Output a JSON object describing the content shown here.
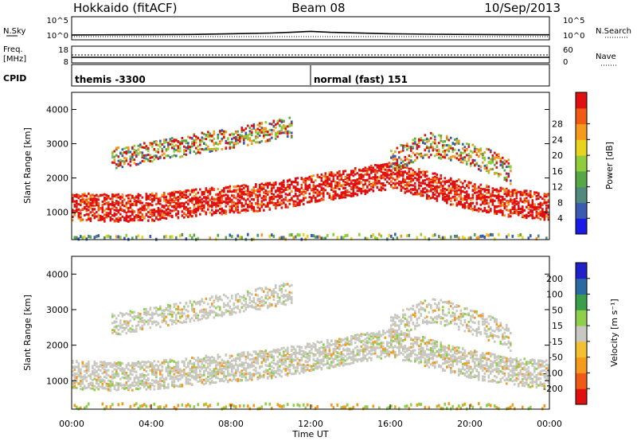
{
  "header": {
    "station": "Hokkaido (fitACF)",
    "beam": "Beam 08",
    "date": "10/Sep/2013"
  },
  "chart_data": [
    {
      "type": "line",
      "name": "noise-panel",
      "left_label": "N.Sky",
      "right_label": "N.Search",
      "left_ticks": [
        "10^5",
        "10^0"
      ],
      "right_ticks": [
        "10^5",
        "10^0"
      ],
      "series": [
        {
          "name": "N.Sky",
          "x": [
            0,
            2,
            4,
            6,
            8,
            10,
            11,
            12,
            13,
            14,
            16,
            18,
            20,
            22,
            24
          ],
          "y": [
            0.35,
            0.38,
            0.4,
            0.45,
            0.6,
            0.75,
            0.9,
            1.1,
            0.9,
            0.8,
            0.6,
            0.5,
            0.45,
            0.4,
            0.38
          ]
        },
        {
          "name": "N.Search",
          "x": [
            0,
            24
          ],
          "y": [
            0.05,
            0.05
          ]
        }
      ]
    },
    {
      "type": "line",
      "name": "frequency-panel",
      "left_label": "Freq.",
      "left_unit": "[MHz]",
      "right_label": "Nave",
      "left_ticks": [
        "18",
        "8"
      ],
      "right_ticks": [
        "60",
        "0"
      ],
      "series": [
        {
          "name": "Freq.",
          "x": [
            0,
            24
          ],
          "y": [
            10.9,
            10.9
          ]
        },
        {
          "name": "Nave",
          "x": [
            0,
            24
          ],
          "y": [
            29,
            29
          ]
        }
      ]
    },
    {
      "type": "table",
      "name": "cpid-panel",
      "label": "CPID",
      "segments": [
        {
          "label": "themis -3300",
          "start": 0.0
        },
        {
          "label": "normal (fast) 151",
          "start": 12.0
        }
      ]
    },
    {
      "type": "heatmap",
      "name": "power-panel",
      "ylabel": "Slant Range [km]",
      "yticks": [
        1000,
        2000,
        3000,
        4000
      ],
      "ylim": [
        200,
        4500
      ],
      "xlim": [
        0,
        24
      ],
      "colorbar": {
        "label": "Power [dB]",
        "ticks": [
          "4",
          "8",
          "12",
          "16",
          "20",
          "24",
          "28"
        ],
        "colors": [
          "#1a1ae6",
          "#3a5bb0",
          "#4f8a7c",
          "#55a845",
          "#8fce3a",
          "#e8d320",
          "#f59a1c",
          "#f05a14",
          "#e01010"
        ]
      },
      "bands": [
        {
          "x": [
            0,
            2,
            4,
            6,
            8,
            10,
            12,
            14,
            16,
            18,
            20,
            22,
            24
          ],
          "y": [
            1200,
            1150,
            1180,
            1300,
            1400,
            1500,
            1700,
            1900,
            2100,
            1800,
            1500,
            1300,
            1200
          ],
          "width": 400,
          "level": "high"
        },
        {
          "x": [
            2,
            4,
            6,
            8,
            10,
            11
          ],
          "y": [
            2600,
            2800,
            3000,
            3200,
            3400,
            3500
          ],
          "width": 300,
          "level": "mid"
        },
        {
          "x": [
            16,
            17,
            18,
            19,
            20,
            21,
            22
          ],
          "y": [
            2500,
            2800,
            3000,
            2900,
            2700,
            2500,
            2200
          ],
          "width": 350,
          "level": "mid"
        }
      ]
    },
    {
      "type": "heatmap",
      "name": "velocity-panel",
      "ylabel": "Slant Range [km]",
      "yticks": [
        1000,
        2000,
        3000,
        4000
      ],
      "ylim": [
        200,
        4500
      ],
      "xlim": [
        0,
        24
      ],
      "xlabel": "Time UT",
      "xticks": [
        "00:00",
        "04:00",
        "08:00",
        "12:00",
        "16:00",
        "20:00",
        "00:00"
      ],
      "colorbar": {
        "label": "Velocity [m s⁻¹]",
        "ticks": [
          "-200",
          "-100",
          "-50",
          "-15",
          "15",
          "50",
          "100",
          "200"
        ],
        "colors": [
          "#e01010",
          "#f05a14",
          "#f59a1c",
          "#f2c030",
          "#c8c8c0",
          "#8fd04a",
          "#3a9e4a",
          "#2a6aa0",
          "#2020c8"
        ]
      }
    }
  ]
}
